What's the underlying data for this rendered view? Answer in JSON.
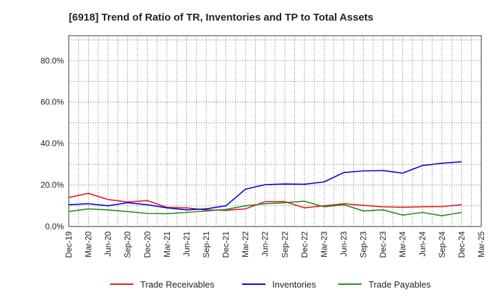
{
  "chart_data": {
    "type": "line",
    "title": "[6918]  Trend of Ratio of TR, Inventories and TP to Total Assets",
    "xlabel": "",
    "ylabel": "",
    "x_ticks": [
      "Dec-19",
      "Mar-20",
      "Jun-20",
      "Sep-20",
      "Dec-20",
      "Mar-21",
      "Jun-21",
      "Sep-21",
      "Dec-21",
      "Mar-22",
      "Jun-22",
      "Sep-22",
      "Dec-22",
      "Mar-23",
      "Jun-23",
      "Sep-23",
      "Dec-23",
      "Mar-24",
      "Jun-24",
      "Sep-24",
      "Dec-24",
      "Mar-25"
    ],
    "x": [
      "Dec-19",
      "Mar-20",
      "Jun-20",
      "Sep-20",
      "Dec-20",
      "Mar-21",
      "Jun-21",
      "Sep-21",
      "Dec-21",
      "Mar-22",
      "Jun-22",
      "Sep-22",
      "Dec-22",
      "Mar-23",
      "Jun-23",
      "Sep-23",
      "Dec-23",
      "Mar-24",
      "Jun-24",
      "Sep-24",
      "Dec-24"
    ],
    "y_ticks": [
      "0.0%",
      "20.0%",
      "40.0%",
      "60.0%",
      "80.0%"
    ],
    "y_tick_values": [
      0,
      20,
      40,
      60,
      80
    ],
    "ylim": [
      0,
      92
    ],
    "grid": true,
    "legend_position": "bottom",
    "series": [
      {
        "name": "Trade Receivables",
        "color": "#e31a1c",
        "values": [
          14.0,
          16.0,
          13.0,
          11.8,
          12.5,
          9.2,
          9.0,
          8.0,
          7.8,
          8.5,
          12.0,
          12.0,
          9.0,
          10.0,
          11.0,
          10.2,
          9.5,
          9.3,
          9.5,
          9.6,
          10.5
        ]
      },
      {
        "name": "Inventories",
        "color": "#0000e0",
        "values": [
          10.5,
          11.0,
          10.0,
          11.5,
          10.5,
          9.0,
          8.0,
          8.5,
          10.0,
          18.0,
          20.2,
          20.5,
          20.4,
          21.5,
          26.0,
          26.8,
          27.0,
          25.7,
          29.4,
          30.5,
          31.2
        ]
      },
      {
        "name": "Trade Payables",
        "color": "#228b22",
        "values": [
          7.2,
          8.5,
          8.0,
          7.2,
          6.3,
          6.2,
          6.8,
          7.5,
          8.2,
          10.0,
          11.0,
          11.5,
          12.2,
          9.5,
          10.5,
          7.5,
          8.0,
          5.5,
          6.8,
          5.2,
          6.8
        ]
      }
    ]
  }
}
